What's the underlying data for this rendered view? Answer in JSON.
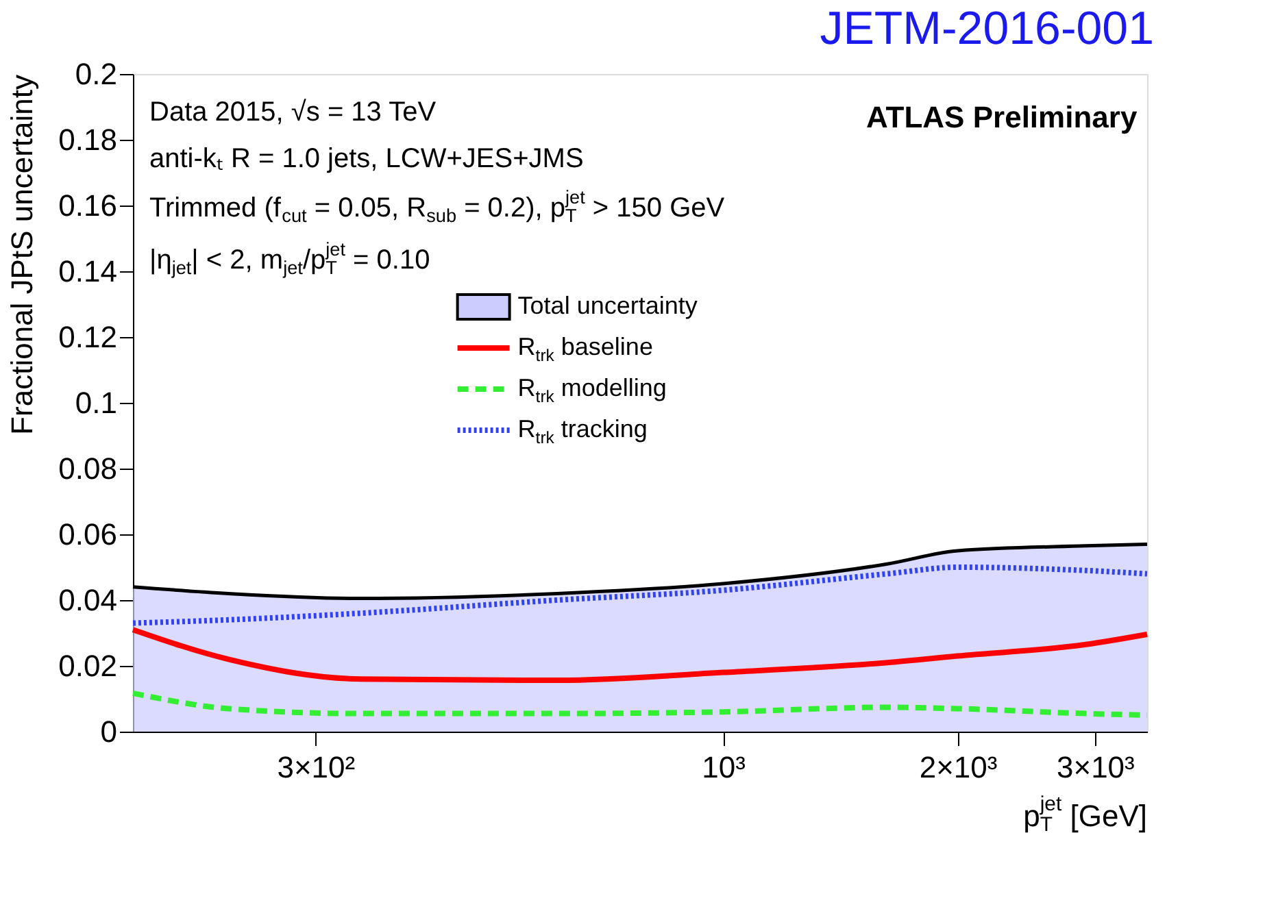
{
  "chart_data": {
    "type": "line",
    "title": "JETM-2016-001",
    "xlabel": "p$_{T}$$^{jet}$ [GeV]",
    "ylabel": "Fractional JPtS uncertainty",
    "x": [
      175,
      232,
      342,
      613,
      1000,
      1625,
      2000,
      2920,
      3500
    ],
    "series": [
      {
        "name": "Total uncertainty",
        "type": "area",
        "color": "#ccccff",
        "values": [
          0.044,
          0.042,
          0.0405,
          0.042,
          0.045,
          0.051,
          0.055,
          0.0565,
          0.057
        ]
      },
      {
        "name": "R$_{trk}$ baseline",
        "line_style": "solid",
        "color": "#ff0000",
        "values": [
          0.031,
          0.022,
          0.016,
          0.0156,
          0.018,
          0.021,
          0.023,
          0.0265,
          0.0296
        ]
      },
      {
        "name": "R$_{trk}$ modelling",
        "line_style": "dashed",
        "color": "#33ee33",
        "values": [
          0.0117,
          0.007,
          0.0055,
          0.0055,
          0.006,
          0.0074,
          0.007,
          0.0055,
          0.005
        ]
      },
      {
        "name": "R$_{trk}$ tracking",
        "line_style": "dotted",
        "color": "#3344ee",
        "values": [
          0.033,
          0.034,
          0.036,
          0.04,
          0.043,
          0.048,
          0.05,
          0.049,
          0.048
        ]
      }
    ],
    "log": "x",
    "xlim": [
      175,
      3500
    ],
    "xticks": [
      {
        "value": 300,
        "label": "3×10²"
      },
      {
        "value": 1000,
        "label": "10³"
      },
      {
        "value": 2000,
        "label": "2×10³"
      },
      {
        "value": 3000,
        "label": "3×10³"
      }
    ],
    "ylim": [
      0,
      0.2
    ],
    "yticks": [
      0,
      0.02,
      0.04,
      0.06,
      0.08,
      0.1,
      0.12,
      0.14,
      0.16,
      0.18,
      0.2
    ],
    "grid": false,
    "legend": "top",
    "annotations": [
      "Data 2015, √s = 13 TeV",
      "anti-kₜ R = 1.0 jets, LCW+JES+JMS",
      "Trimmed (f$_{cut}$ = 0.05, R$_{sub}$ = 0.2), p$_{T}$$^{jet}$ > 150 GeV",
      "|η$_{jet}$| < 2, m$_{jet}$/p$_{T}$$^{jet}$ = 0.10",
      "ATLAS Preliminary"
    ]
  }
}
